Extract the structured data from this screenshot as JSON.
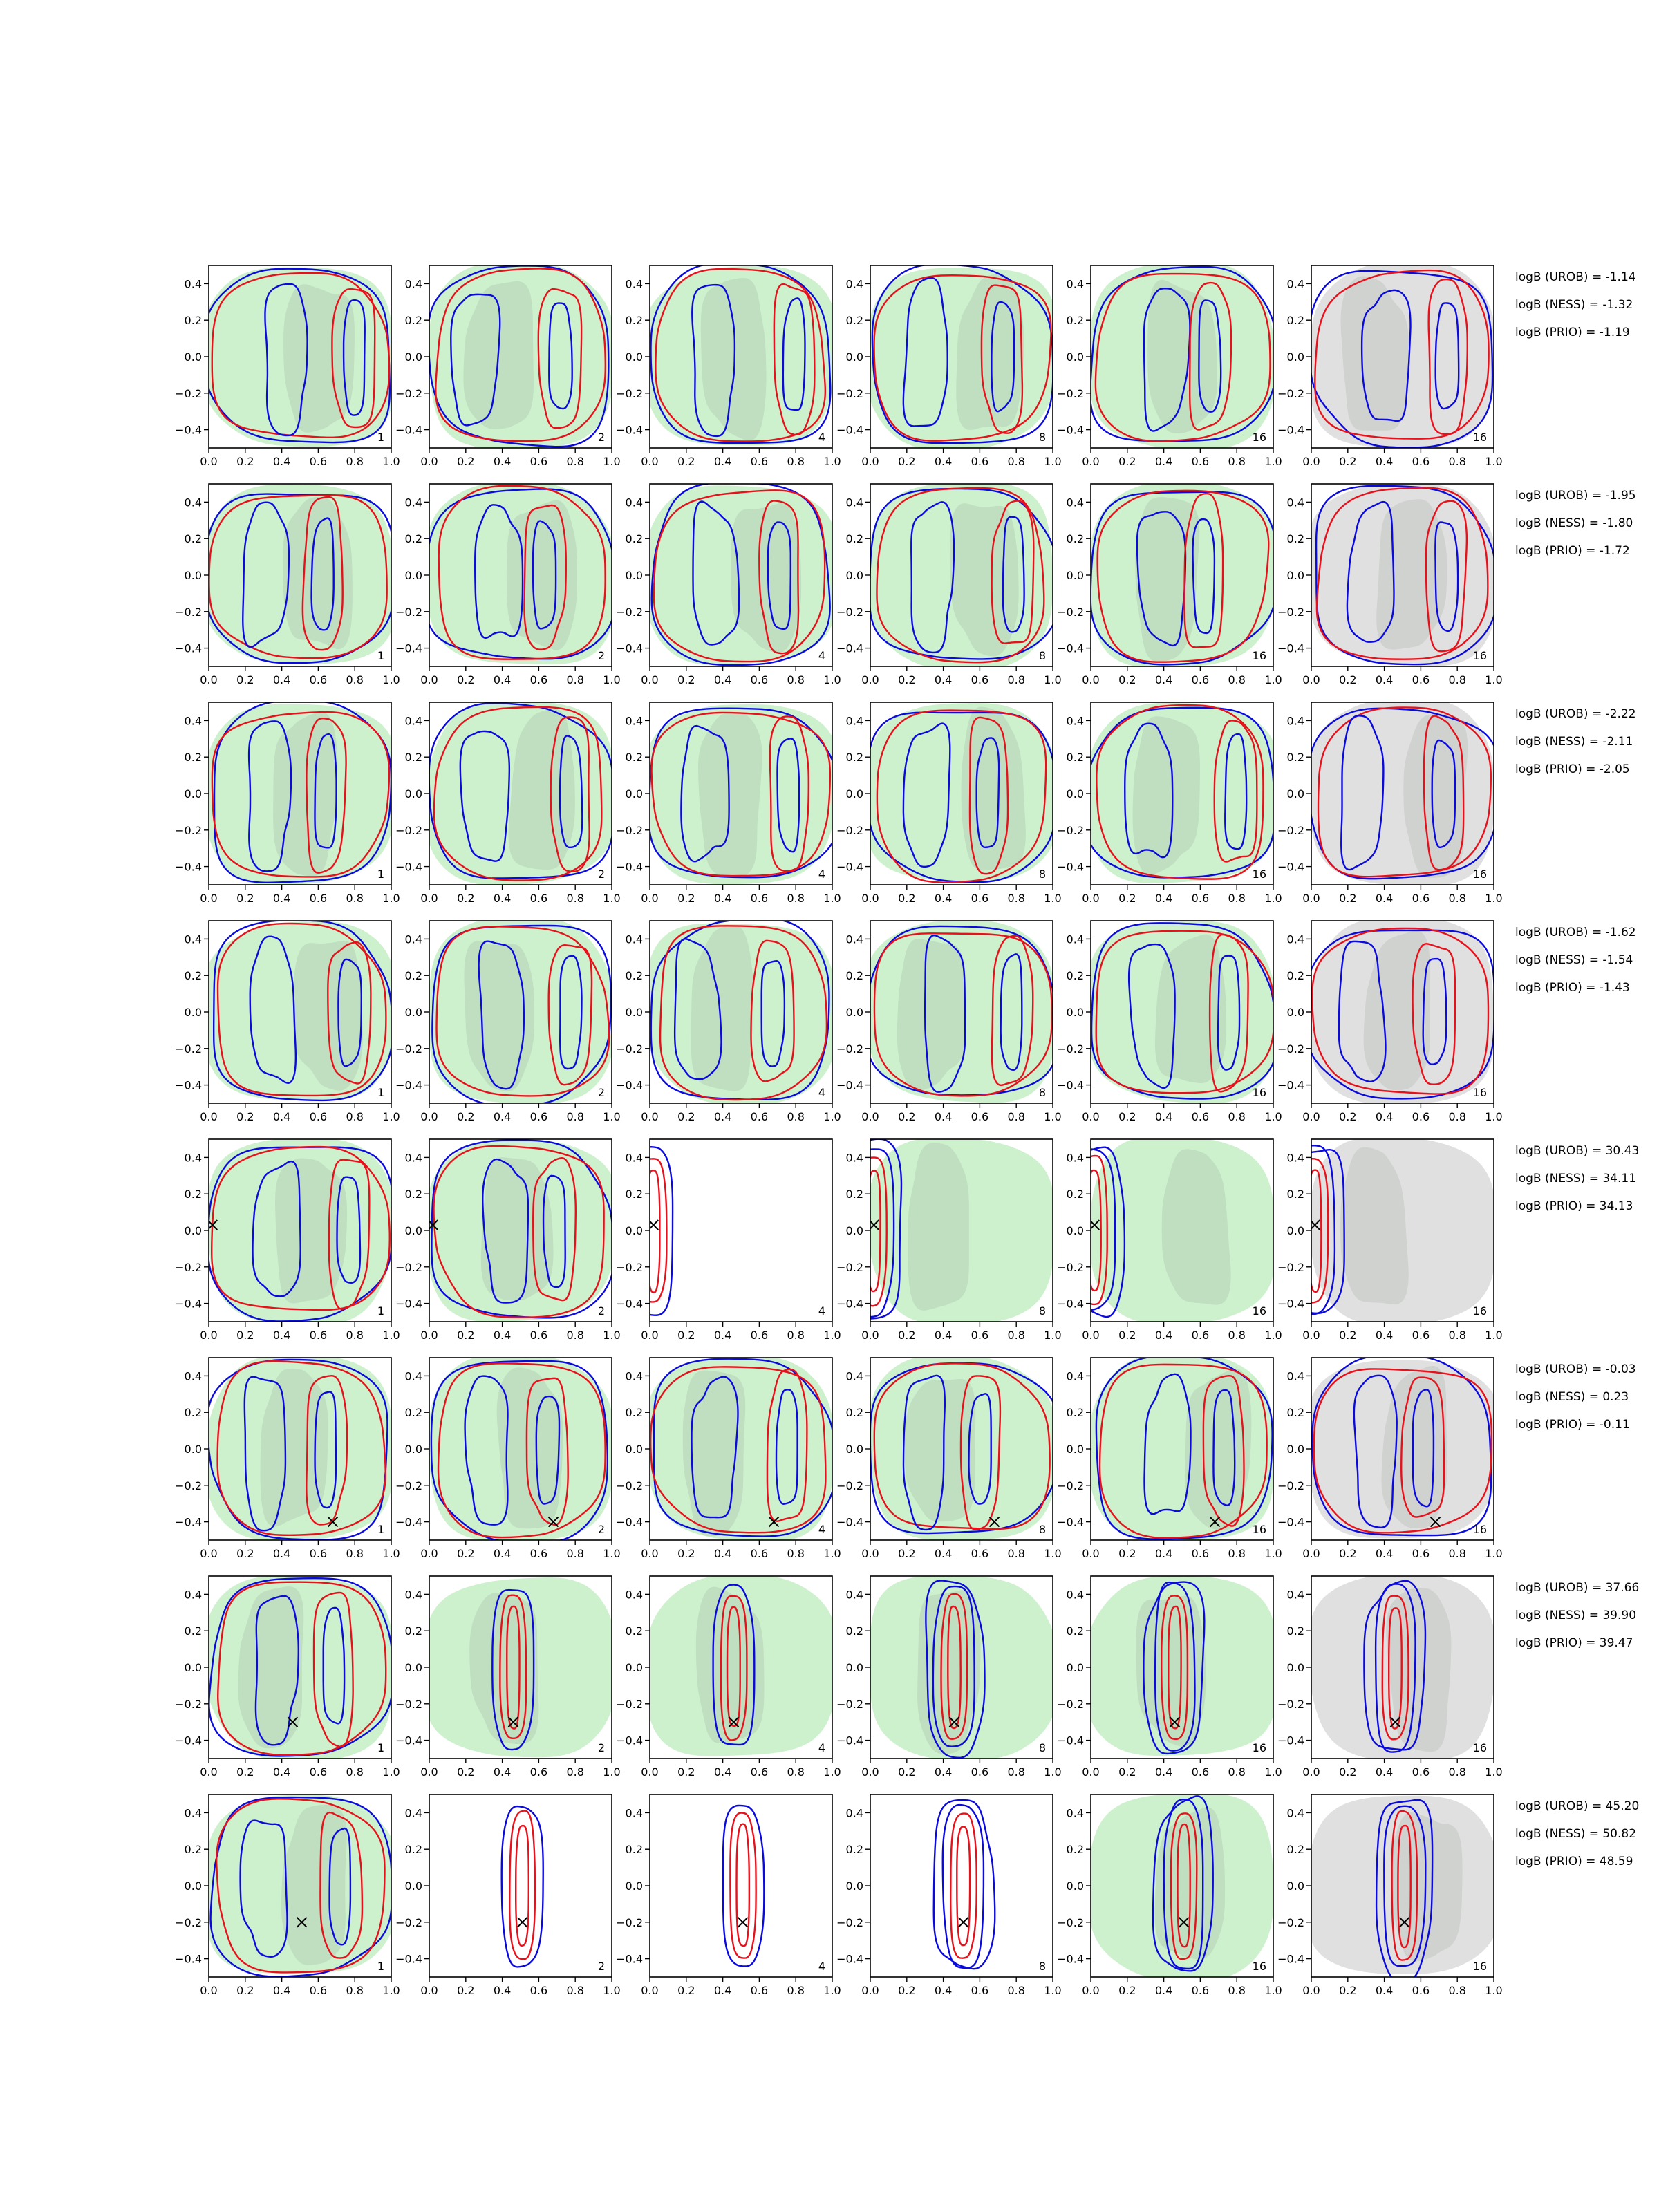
{
  "chart_data": {
    "type": "contour",
    "layout": {
      "rows": 8,
      "columns": 6
    },
    "xlim": [
      0.0,
      1.0
    ],
    "ylim": [
      -0.5,
      0.5
    ],
    "x_ticks": [
      "0.0",
      "0.2",
      "0.4",
      "0.6",
      "0.8",
      "1.0"
    ],
    "y_ticks": [
      "0.4",
      "0.2",
      "0.0",
      "−0.2",
      "−0.4"
    ],
    "colors": {
      "red_contours": "#e8111b",
      "blue_contours": "#0a0adf",
      "green_fill": "#c8f0c8",
      "grey_fill": "#dddddd"
    },
    "column_labels": [
      "1",
      "2",
      "4",
      "8",
      "16",
      "16"
    ],
    "rows": [
      {
        "logB": [
          "logB (UROB) = -1.14",
          "logB (NESS) = -1.32",
          "logB (PRIO) = -1.19"
        ],
        "marker": null
      },
      {
        "logB": [
          "logB (UROB) = -1.95",
          "logB (NESS) = -1.80",
          "logB (PRIO) = -1.72"
        ],
        "marker": null
      },
      {
        "logB": [
          "logB (UROB) = -2.22",
          "logB (NESS) = -2.11",
          "logB (PRIO) = -2.05"
        ],
        "marker": null
      },
      {
        "logB": [
          "logB (UROB) = -1.62",
          "logB (NESS) = -1.54",
          "logB (PRIO) = -1.43"
        ],
        "marker": null
      },
      {
        "logB": [
          "logB (UROB) = 30.43",
          "logB (NESS) = 34.11",
          "logB (PRIO) = 34.13"
        ],
        "marker": [
          0.02,
          0.03
        ]
      },
      {
        "logB": [
          "logB (UROB) = -0.03",
          "logB (NESS) = 0.23",
          "logB (PRIO) = -0.11"
        ],
        "marker": [
          0.68,
          -0.4
        ]
      },
      {
        "logB": [
          "logB (UROB) = 37.66",
          "logB (NESS) = 39.90",
          "logB (PRIO) = 39.47"
        ],
        "marker": [
          0.46,
          -0.3
        ]
      },
      {
        "logB": [
          "logB (UROB) = 45.20",
          "logB (NESS) = 50.82",
          "logB (PRIO) = 48.59"
        ],
        "marker": [
          0.51,
          -0.2
        ]
      }
    ]
  }
}
